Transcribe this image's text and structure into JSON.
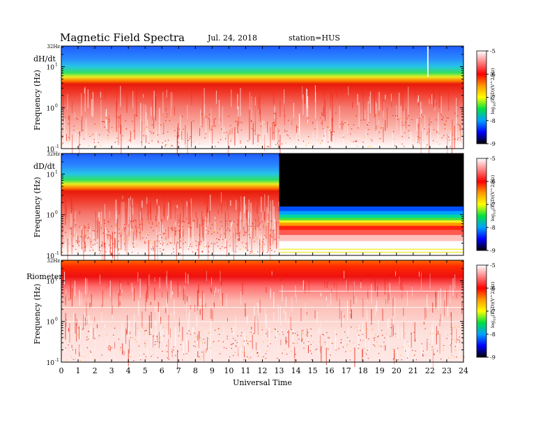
{
  "header": {
    "title": "Magnetic  Field  Spectra",
    "date": "Jul.  24, 2018",
    "station": "station=HUS"
  },
  "colors": {
    "background": "#ffffff",
    "gap_fill": "#000000",
    "colormap": [
      "#000000",
      "#0000ff",
      "#00a0ff",
      "#00e040",
      "#ffff00",
      "#ff9900",
      "#ff0000",
      "#ff8080",
      "#ffffff"
    ]
  },
  "chart_data": [
    {
      "type": "heatmap",
      "panel": "dH/dt",
      "ylabel": "Frequency  (Hz)",
      "yscale": "log",
      "ylim": [
        0.1,
        32
      ],
      "y_tick_labels": [
        "32Hz",
        "10",
        "10",
        "10"
      ],
      "y_tick_exponents": [
        "",
        "1",
        "0",
        "-1"
      ],
      "xlim": [
        0,
        24
      ],
      "colorbar": {
        "label": "log",
        "label_sub": "10",
        "label_rest": "(PSD)(V^2/Hz)",
        "range": [
          -9,
          -5
        ],
        "ticks": [
          "-5",
          "-6",
          "-7",
          "-8",
          "-9"
        ]
      },
      "features": {
        "band_center_freq_hz": 4,
        "data_gap_hours": [],
        "notable_spikes_hours": [
          22
        ]
      }
    },
    {
      "type": "heatmap",
      "panel": "dD/dt",
      "ylabel": "Frequency  (Hz)",
      "yscale": "log",
      "ylim": [
        0.1,
        32
      ],
      "y_tick_labels": [
        "32Hz",
        "10",
        "10",
        "10"
      ],
      "y_tick_exponents": [
        "",
        "1",
        "0",
        "-1"
      ],
      "xlim": [
        0,
        24
      ],
      "colorbar": {
        "label": "log",
        "label_sub": "10",
        "label_rest": "(PSD)(V^2/Hz)",
        "range": [
          -9,
          -5
        ],
        "ticks": [
          "-5",
          "-6",
          "-7",
          "-8",
          "-9"
        ]
      },
      "features": {
        "band_center_freq_hz": 4,
        "data_gap_hours": [
          13,
          24
        ],
        "notable_spikes_hours": []
      }
    },
    {
      "type": "heatmap",
      "panel": "Riometer",
      "ylabel": "Frequency  (Hz)",
      "yscale": "log",
      "ylim": [
        0.1,
        32
      ],
      "y_tick_labels": [
        "32Hz",
        "10",
        "10",
        "10"
      ],
      "y_tick_exponents": [
        "",
        "1",
        "0",
        "-1"
      ],
      "xlim": [
        0,
        24
      ],
      "colorbar": {
        "label": "log",
        "label_sub": "10",
        "label_rest": "(PSD)(V^2/Hz)",
        "range": [
          -9,
          -5
        ],
        "ticks": [
          "-5",
          "-6",
          "-7",
          "-8",
          "-9"
        ]
      },
      "features": {
        "band_center_freq_hz": 20,
        "data_gap_hours": [],
        "notable_spikes_hours": []
      }
    }
  ],
  "x_axis": {
    "label": "Universal  Time",
    "ticks": [
      "0",
      "1",
      "2",
      "3",
      "4",
      "5",
      "6",
      "7",
      "8",
      "9",
      "10",
      "11",
      "12",
      "13",
      "14",
      "15",
      "16",
      "17",
      "18",
      "19",
      "20",
      "21",
      "22",
      "23",
      "24"
    ]
  }
}
